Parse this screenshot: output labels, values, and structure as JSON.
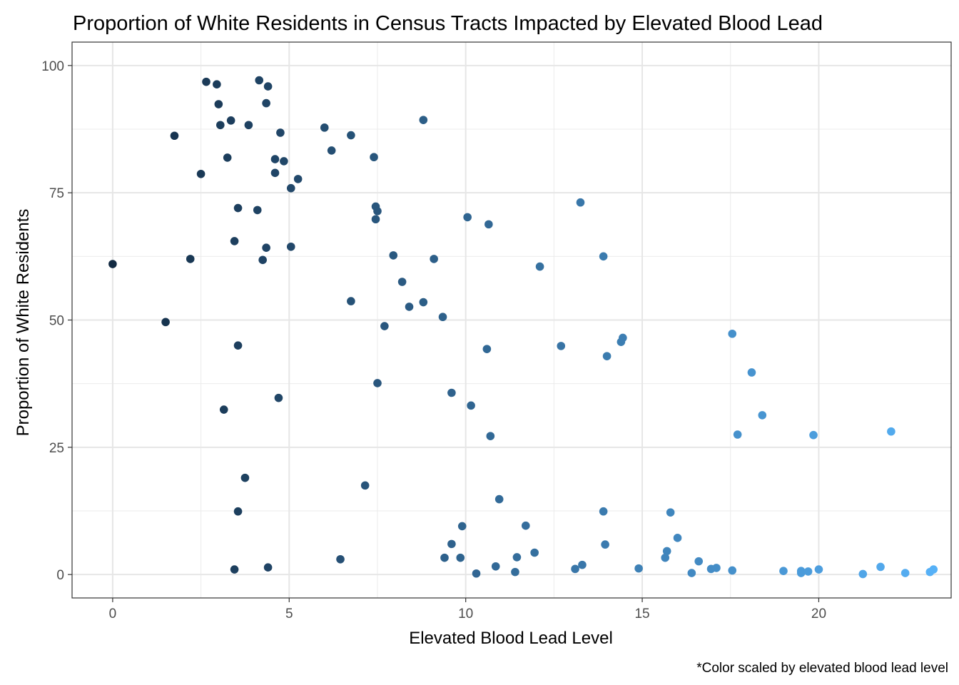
{
  "chart_data": {
    "type": "scatter",
    "title": "Proportion of White Residents in Census Tracts Impacted by Elevated Blood Lead",
    "xlabel": "Elevated Blood Lead Level",
    "ylabel": "Proportion of White Residents",
    "caption": "*Color scaled by elevated blood lead level",
    "xlim": [
      -1.15,
      23.75
    ],
    "ylim": [
      -4.6,
      104.6
    ],
    "x_ticks": [
      0,
      5,
      10,
      15,
      20
    ],
    "x_tick_labels": [
      "0",
      "5",
      "10",
      "15",
      "20"
    ],
    "y_ticks": [
      0,
      25,
      50,
      75,
      100
    ],
    "y_tick_labels": [
      "0",
      "25",
      "50",
      "75",
      "100"
    ],
    "grid": true,
    "color_scale": {
      "low": "#132b43",
      "high": "#56b1f7",
      "domain": [
        0,
        23.3
      ]
    },
    "x": [
      0.0,
      1.5,
      1.75,
      2.2,
      2.5,
      2.65,
      2.95,
      3.0,
      3.05,
      3.15,
      3.25,
      3.35,
      3.45,
      3.45,
      3.55,
      3.55,
      3.55,
      3.75,
      3.85,
      4.1,
      4.15,
      4.25,
      4.35,
      4.35,
      4.4,
      4.4,
      4.6,
      4.6,
      4.7,
      4.75,
      4.85,
      5.05,
      5.05,
      5.25,
      6.0,
      6.2,
      6.45,
      6.75,
      6.75,
      7.15,
      7.4,
      7.45,
      7.45,
      7.5,
      7.5,
      7.7,
      7.95,
      8.2,
      8.4,
      8.8,
      8.8,
      9.1,
      9.35,
      9.4,
      9.6,
      9.6,
      9.85,
      9.9,
      10.05,
      10.15,
      10.3,
      10.6,
      10.65,
      10.7,
      10.85,
      10.95,
      11.4,
      11.45,
      11.7,
      11.95,
      12.1,
      12.7,
      13.1,
      13.25,
      13.3,
      13.9,
      13.9,
      13.95,
      14.0,
      14.4,
      14.45,
      14.9,
      15.65,
      15.7,
      15.8,
      16.0,
      16.4,
      16.6,
      16.95,
      17.1,
      17.55,
      17.55,
      17.7,
      18.1,
      18.4,
      19.0,
      19.5,
      19.5,
      19.7,
      19.85,
      20.0,
      21.25,
      21.75,
      22.05,
      22.45,
      23.15,
      23.25
    ],
    "y": [
      61.0,
      49.6,
      86.2,
      62.0,
      78.7,
      96.8,
      96.3,
      92.4,
      88.3,
      32.4,
      81.9,
      89.2,
      65.5,
      1.0,
      45.0,
      12.4,
      72.0,
      19.0,
      88.3,
      71.6,
      97.1,
      61.8,
      64.2,
      92.6,
      95.9,
      1.4,
      81.6,
      78.9,
      34.7,
      86.8,
      81.2,
      75.9,
      64.4,
      77.7,
      87.8,
      83.3,
      3.0,
      53.7,
      86.3,
      17.5,
      82.0,
      72.3,
      69.8,
      71.4,
      37.6,
      48.8,
      62.7,
      57.5,
      52.6,
      53.5,
      89.3,
      62.0,
      50.6,
      3.3,
      35.7,
      6.0,
      3.3,
      9.5,
      70.2,
      33.2,
      0.2,
      44.3,
      68.8,
      27.2,
      1.6,
      14.8,
      0.5,
      3.4,
      9.6,
      4.3,
      60.5,
      44.9,
      1.1,
      73.1,
      1.9,
      62.5,
      12.4,
      5.9,
      42.9,
      45.7,
      46.5,
      1.2,
      3.3,
      4.6,
      12.2,
      7.2,
      0.3,
      2.6,
      1.1,
      1.3,
      47.3,
      0.8,
      27.5,
      39.7,
      31.3,
      0.7,
      0.7,
      0.3,
      0.6,
      27.4,
      1.0,
      0.1,
      1.5,
      28.1,
      0.3,
      0.5,
      1.0
    ]
  }
}
